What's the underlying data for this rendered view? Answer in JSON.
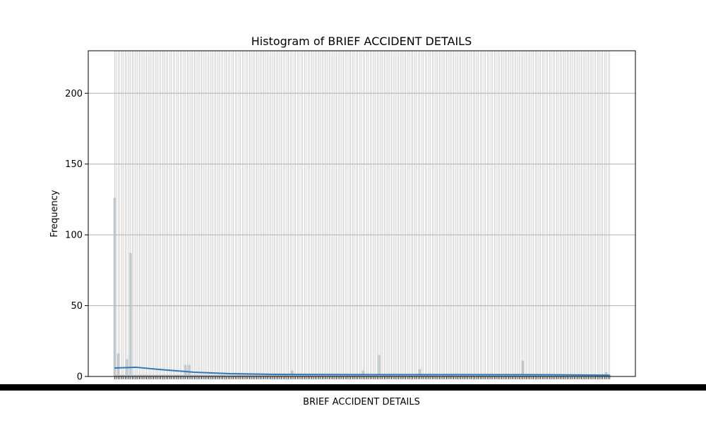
{
  "chart_data": {
    "type": "bar",
    "title": "Histogram of BRIEF ACCIDENT DETAILS",
    "xlabel": "BRIEF ACCIDENT DETAILS",
    "ylabel": "Frequency",
    "ylim": [
      0,
      230
    ],
    "yticks": [
      0,
      50,
      100,
      150,
      200
    ],
    "grid": "y",
    "category_count": 280,
    "category_labels_legible": false,
    "notable_bins": [
      {
        "index": 0,
        "value": 126
      },
      {
        "index": 2,
        "value": 16
      },
      {
        "index": 7,
        "value": 12
      },
      {
        "index": 9,
        "value": 87
      },
      {
        "index": 40,
        "value": 8
      },
      {
        "index": 42,
        "value": 8
      },
      {
        "index": 100,
        "value": 4
      },
      {
        "index": 140,
        "value": 4
      },
      {
        "index": 149,
        "value": 15
      },
      {
        "index": 172,
        "value": 5
      },
      {
        "index": 230,
        "value": 11
      },
      {
        "index": 277,
        "value": 3
      }
    ],
    "default_value": 1,
    "kde": [
      [
        0,
        6
      ],
      [
        12,
        6.5
      ],
      [
        25,
        5
      ],
      [
        45,
        3
      ],
      [
        65,
        2
      ],
      [
        90,
        1.5
      ],
      [
        140,
        1.3
      ],
      [
        200,
        1.3
      ],
      [
        250,
        1.2
      ],
      [
        279,
        0.9
      ]
    ],
    "colors": {
      "bar_fill": "#bcc8d3",
      "bar_edge": "#9e9e9e",
      "kde": "#2f78b7",
      "grid": "#b0b0b0"
    }
  }
}
